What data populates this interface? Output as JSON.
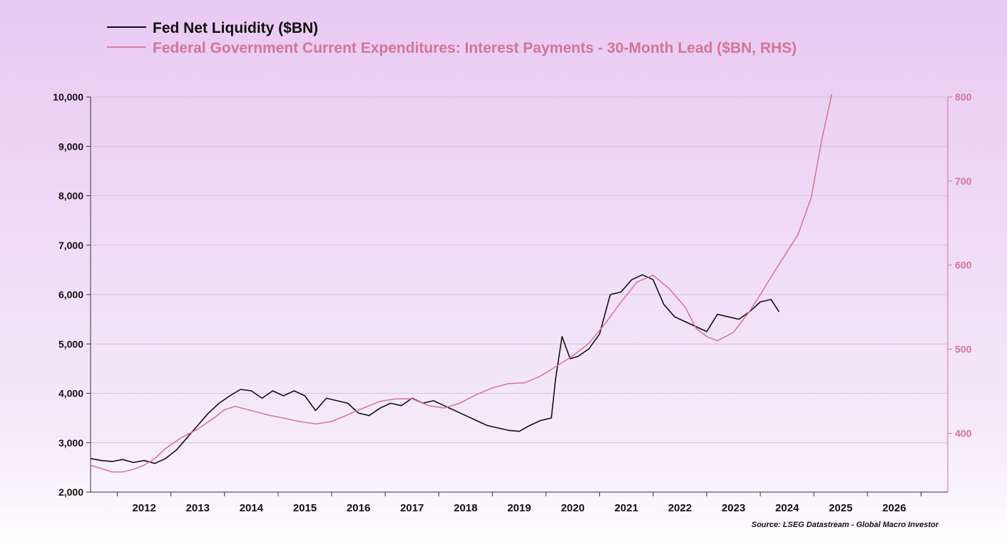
{
  "chart_data": {
    "type": "line",
    "title": "",
    "legend": [
      {
        "label": "Fed Net Liquidity ($BN)",
        "color": "#111111"
      },
      {
        "label": "Federal Government Current Expenditures: Interest Payments - 30-Month Lead ($BN, RHS)",
        "color": "#d37593"
      }
    ],
    "legend_placement": "top-left",
    "grid": true,
    "y_left": {
      "range": [
        2000,
        10000
      ],
      "ticks": [
        "2,000",
        "3,000",
        "4,000",
        "5,000",
        "6,000",
        "7,000",
        "8,000",
        "9,000",
        "10,000"
      ]
    },
    "y_right": {
      "range": [
        330,
        800
      ],
      "ticks": [
        "400",
        "500",
        "600",
        "700",
        "800"
      ]
    },
    "x": {
      "range": [
        2011.5,
        2027.5
      ],
      "ticks": [
        "2012",
        "2013",
        "2014",
        "2015",
        "2016",
        "2017",
        "2018",
        "2019",
        "2020",
        "2021",
        "2022",
        "2023",
        "2024",
        "2025",
        "2026"
      ]
    },
    "series": [
      {
        "name": "Fed Net Liquidity ($BN)",
        "axis": "left",
        "color": "#111111",
        "points": [
          [
            2011.5,
            2680
          ],
          [
            2011.7,
            2640
          ],
          [
            2011.9,
            2620
          ],
          [
            2012.1,
            2660
          ],
          [
            2012.3,
            2600
          ],
          [
            2012.5,
            2640
          ],
          [
            2012.7,
            2580
          ],
          [
            2012.9,
            2680
          ],
          [
            2013.1,
            2850
          ],
          [
            2013.3,
            3100
          ],
          [
            2013.5,
            3350
          ],
          [
            2013.7,
            3600
          ],
          [
            2013.9,
            3800
          ],
          [
            2014.1,
            3950
          ],
          [
            2014.3,
            4080
          ],
          [
            2014.5,
            4050
          ],
          [
            2014.7,
            3900
          ],
          [
            2014.9,
            4050
          ],
          [
            2015.1,
            3950
          ],
          [
            2015.3,
            4050
          ],
          [
            2015.5,
            3950
          ],
          [
            2015.7,
            3650
          ],
          [
            2015.9,
            3900
          ],
          [
            2016.1,
            3850
          ],
          [
            2016.3,
            3800
          ],
          [
            2016.5,
            3600
          ],
          [
            2016.7,
            3550
          ],
          [
            2016.9,
            3700
          ],
          [
            2017.1,
            3800
          ],
          [
            2017.3,
            3750
          ],
          [
            2017.5,
            3900
          ],
          [
            2017.7,
            3800
          ],
          [
            2017.9,
            3850
          ],
          [
            2018.1,
            3750
          ],
          [
            2018.3,
            3650
          ],
          [
            2018.5,
            3550
          ],
          [
            2018.7,
            3450
          ],
          [
            2018.9,
            3350
          ],
          [
            2019.1,
            3300
          ],
          [
            2019.3,
            3250
          ],
          [
            2019.5,
            3230
          ],
          [
            2019.7,
            3350
          ],
          [
            2019.9,
            3450
          ],
          [
            2020.1,
            3500
          ],
          [
            2020.18,
            4300
          ],
          [
            2020.3,
            5150
          ],
          [
            2020.45,
            4700
          ],
          [
            2020.6,
            4750
          ],
          [
            2020.8,
            4900
          ],
          [
            2021.0,
            5200
          ],
          [
            2021.2,
            6000
          ],
          [
            2021.4,
            6050
          ],
          [
            2021.6,
            6300
          ],
          [
            2021.8,
            6400
          ],
          [
            2022.0,
            6300
          ],
          [
            2022.2,
            5800
          ],
          [
            2022.4,
            5550
          ],
          [
            2022.6,
            5450
          ],
          [
            2022.8,
            5350
          ],
          [
            2023.0,
            5250
          ],
          [
            2023.2,
            5600
          ],
          [
            2023.4,
            5550
          ],
          [
            2023.6,
            5500
          ],
          [
            2023.8,
            5650
          ],
          [
            2024.0,
            5850
          ],
          [
            2024.2,
            5900
          ],
          [
            2024.35,
            5650
          ]
        ]
      },
      {
        "name": "Federal Government Current Expenditures: Interest Payments - 30-Month Lead ($BN, RHS)",
        "axis": "right",
        "color": "#d37593",
        "points": [
          [
            2011.5,
            362
          ],
          [
            2011.7,
            358
          ],
          [
            2011.9,
            354
          ],
          [
            2012.1,
            354
          ],
          [
            2012.3,
            357
          ],
          [
            2012.5,
            362
          ],
          [
            2012.7,
            370
          ],
          [
            2012.9,
            382
          ],
          [
            2013.2,
            395
          ],
          [
            2013.5,
            405
          ],
          [
            2013.8,
            418
          ],
          [
            2014.0,
            428
          ],
          [
            2014.2,
            432
          ],
          [
            2014.5,
            427
          ],
          [
            2014.8,
            422
          ],
          [
            2015.1,
            418
          ],
          [
            2015.4,
            414
          ],
          [
            2015.7,
            411
          ],
          [
            2016.0,
            414
          ],
          [
            2016.3,
            422
          ],
          [
            2016.6,
            430
          ],
          [
            2016.9,
            438
          ],
          [
            2017.2,
            441
          ],
          [
            2017.5,
            441
          ],
          [
            2017.8,
            433
          ],
          [
            2018.1,
            430
          ],
          [
            2018.4,
            436
          ],
          [
            2018.7,
            446
          ],
          [
            2019.0,
            454
          ],
          [
            2019.3,
            459
          ],
          [
            2019.6,
            460
          ],
          [
            2019.9,
            468
          ],
          [
            2020.2,
            480
          ],
          [
            2020.5,
            492
          ],
          [
            2020.8,
            507
          ],
          [
            2021.1,
            530
          ],
          [
            2021.4,
            556
          ],
          [
            2021.7,
            580
          ],
          [
            2022.0,
            588
          ],
          [
            2022.3,
            572
          ],
          [
            2022.6,
            550
          ],
          [
            2022.8,
            525
          ],
          [
            2023.0,
            515
          ],
          [
            2023.2,
            510
          ],
          [
            2023.5,
            520
          ],
          [
            2023.8,
            545
          ],
          [
            2024.0,
            565
          ],
          [
            2024.3,
            596
          ],
          [
            2024.7,
            636
          ],
          [
            2024.95,
            680
          ],
          [
            2025.15,
            750
          ],
          [
            2025.35,
            808
          ]
        ]
      }
    ]
  },
  "source": "Source: LSEG Datastream - Global Macro Investor"
}
